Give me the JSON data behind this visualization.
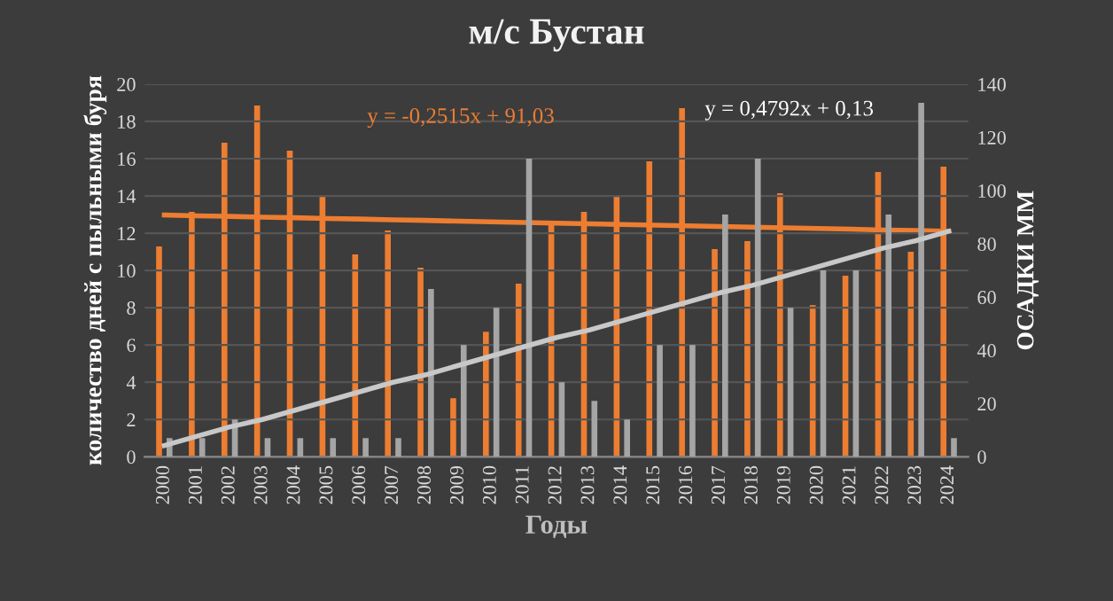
{
  "chart_data": {
    "type": "bar",
    "title": "м/с Бустан",
    "xlabel": "Годы",
    "ylabel": "количество дней с пыльными буря",
    "y2label": "ОСАДКИ ММ",
    "categories": [
      "2000",
      "2001",
      "2002",
      "2003",
      "2004",
      "2005",
      "2006",
      "2007",
      "2008",
      "2009",
      "2010",
      "2011",
      "2012",
      "2013",
      "2014",
      "2015",
      "2016",
      "2017",
      "2018",
      "2019",
      "2020",
      "2021",
      "2022",
      "2023",
      "2024"
    ],
    "series": [
      {
        "color": "#ed7d31",
        "axis": "y2",
        "values": [
          79,
          92,
          118,
          132,
          115,
          98,
          76,
          85,
          71,
          22,
          47,
          65,
          88,
          92,
          98,
          111,
          131,
          78,
          81,
          99,
          57,
          68,
          107,
          77,
          109
        ]
      },
      {
        "color": "#a5a5a5",
        "values": [
          1,
          1,
          2,
          1,
          1,
          1,
          1,
          1,
          9,
          6,
          8,
          16,
          4,
          3,
          2,
          6,
          6,
          13,
          16,
          8,
          10,
          10,
          13,
          19,
          1
        ]
      },
      {
        "type": "line",
        "color": "#ed7d31",
        "axis": "y2",
        "values": [
          90.8,
          90.5,
          90.3,
          90.0,
          89.8,
          89.5,
          89.3,
          89.0,
          88.8,
          88.5,
          88.3,
          88.0,
          87.8,
          87.5,
          87.3,
          87.0,
          86.8,
          86.5,
          86.3,
          86.0,
          85.8,
          85.5,
          85.2,
          85.0,
          84.7
        ]
      },
      {
        "type": "line",
        "color": "#c8c8c8",
        "values": [
          0.6,
          1.1,
          1.6,
          2.0,
          2.5,
          3.0,
          3.5,
          4.0,
          4.4,
          4.9,
          5.4,
          5.9,
          6.4,
          6.8,
          7.3,
          7.8,
          8.3,
          8.8,
          9.2,
          9.7,
          10.2,
          10.7,
          11.2,
          11.6,
          12.1
        ]
      }
    ],
    "ylim": [
      0,
      20
    ],
    "yticks": [
      0,
      2,
      4,
      6,
      8,
      10,
      12,
      14,
      16,
      18,
      20
    ],
    "y2lim": [
      0,
      140
    ],
    "y2ticks": [
      0,
      20,
      40,
      60,
      80,
      100,
      120,
      140
    ],
    "grid": "y",
    "legend": false,
    "annotations": [
      "y = -0,2515x + 91,03",
      "y = 0,4792x + 0,13"
    ]
  }
}
